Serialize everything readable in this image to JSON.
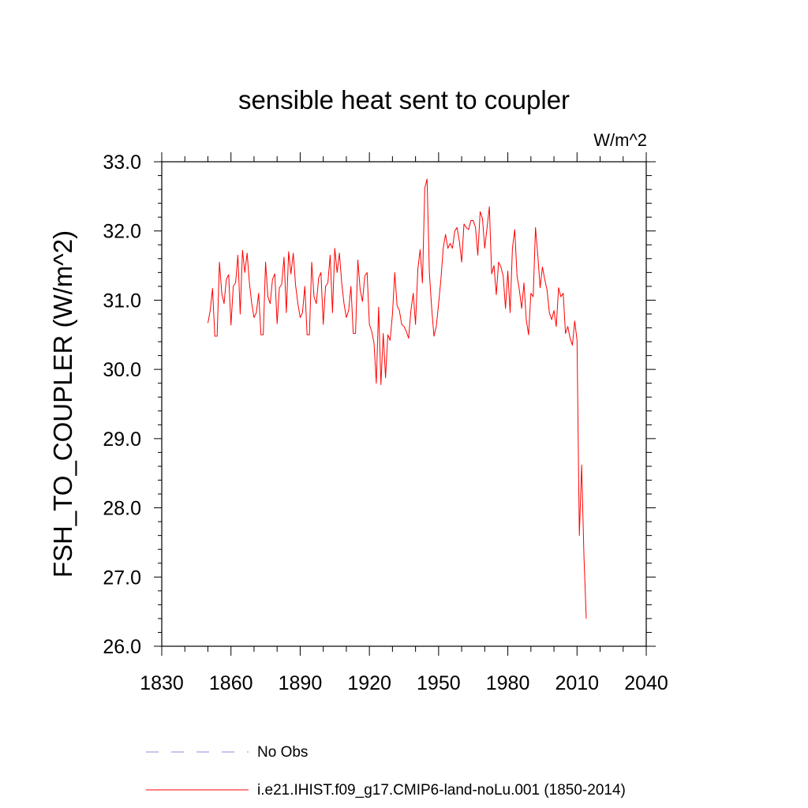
{
  "chart_data": {
    "type": "line",
    "title": "sensible heat sent to coupler",
    "units_label": "W/m^2",
    "ylabel": "FSH_TO_COUPLER  (W/m^2)",
    "xlabel": "",
    "xlim": [
      1830,
      2040
    ],
    "ylim": [
      26.0,
      33.0
    ],
    "x_ticks": [
      1830,
      1860,
      1890,
      1920,
      1950,
      1980,
      2010,
      2040
    ],
    "x_tick_labels": [
      "1830",
      "1860",
      "1890",
      "1920",
      "1950",
      "1980",
      "2010",
      "2040"
    ],
    "y_ticks": [
      26.0,
      27.0,
      28.0,
      29.0,
      30.0,
      31.0,
      32.0,
      33.0
    ],
    "y_tick_labels": [
      "26.0",
      "27.0",
      "28.0",
      "29.0",
      "30.0",
      "31.0",
      "32.0",
      "33.0"
    ],
    "grid": false,
    "legend_position": "bottom",
    "series": [
      {
        "name": "i.e21.IHIST.f09_g17.CMIP6-land-noLu.001 (1850-2014)",
        "color": "#ff0000",
        "style": "solid",
        "x": [
          1850,
          1851,
          1852,
          1853,
          1854,
          1855,
          1856,
          1857,
          1858,
          1859,
          1860,
          1861,
          1862,
          1863,
          1864,
          1865,
          1866,
          1867,
          1868,
          1869,
          1870,
          1871,
          1872,
          1873,
          1874,
          1875,
          1876,
          1877,
          1878,
          1879,
          1880,
          1881,
          1882,
          1883,
          1884,
          1885,
          1886,
          1887,
          1888,
          1889,
          1890,
          1891,
          1892,
          1893,
          1894,
          1895,
          1896,
          1897,
          1898,
          1899,
          1900,
          1901,
          1902,
          1903,
          1904,
          1905,
          1906,
          1907,
          1908,
          1909,
          1910,
          1911,
          1912,
          1913,
          1914,
          1915,
          1916,
          1917,
          1918,
          1919,
          1920,
          1921,
          1922,
          1923,
          1924,
          1925,
          1926,
          1927,
          1928,
          1929,
          1930,
          1931,
          1932,
          1933,
          1934,
          1935,
          1936,
          1937,
          1938,
          1939,
          1940,
          1941,
          1942,
          1943,
          1944,
          1945,
          1946,
          1947,
          1948,
          1949,
          1950,
          1951,
          1952,
          1953,
          1954,
          1955,
          1956,
          1957,
          1958,
          1959,
          1960,
          1961,
          1962,
          1963,
          1964,
          1965,
          1966,
          1967,
          1968,
          1969,
          1970,
          1971,
          1972,
          1973,
          1974,
          1975,
          1976,
          1977,
          1978,
          1979,
          1980,
          1981,
          1982,
          1983,
          1984,
          1985,
          1986,
          1987,
          1988,
          1989,
          1990,
          1991,
          1992,
          1993,
          1994,
          1995,
          1996,
          1997,
          1998,
          1999,
          2000,
          2001,
          2002,
          2003,
          2004,
          2005,
          2006,
          2007,
          2008,
          2009,
          2010,
          2011,
          2012,
          2013,
          2014
        ],
        "values": [
          30.67,
          30.85,
          31.17,
          30.48,
          30.48,
          31.55,
          31.1,
          30.95,
          31.3,
          31.37,
          30.64,
          31.2,
          31.25,
          31.65,
          30.8,
          31.72,
          31.4,
          31.68,
          31.25,
          30.95,
          30.75,
          30.82,
          31.1,
          30.5,
          30.5,
          31.55,
          31.05,
          30.95,
          31.3,
          31.38,
          30.66,
          31.18,
          31.23,
          31.62,
          30.82,
          31.7,
          31.38,
          31.68,
          31.22,
          30.95,
          30.75,
          30.82,
          31.2,
          30.5,
          30.5,
          31.55,
          31.05,
          30.95,
          31.32,
          31.4,
          30.65,
          31.2,
          31.25,
          31.65,
          30.82,
          31.75,
          31.4,
          31.68,
          31.25,
          30.95,
          30.75,
          30.85,
          31.2,
          30.52,
          30.52,
          31.58,
          31.15,
          30.98,
          31.35,
          31.4,
          30.65,
          30.55,
          30.38,
          29.8,
          30.9,
          29.78,
          30.52,
          29.88,
          30.5,
          30.42,
          30.8,
          31.4,
          30.92,
          30.85,
          30.65,
          30.62,
          30.55,
          30.45,
          30.85,
          31.1,
          30.65,
          31.45,
          31.73,
          31.25,
          32.62,
          32.75,
          31.4,
          30.88,
          30.48,
          30.62,
          30.95,
          31.3,
          31.75,
          31.95,
          31.75,
          31.82,
          31.75,
          32.0,
          32.05,
          31.85,
          31.55,
          32.1,
          32.05,
          32.02,
          32.15,
          32.15,
          32.05,
          31.65,
          32.28,
          32.18,
          31.75,
          32.05,
          32.35,
          31.38,
          31.5,
          31.08,
          31.55,
          31.48,
          31.35,
          30.88,
          31.42,
          30.82,
          31.75,
          32.02,
          31.35,
          31.15,
          30.88,
          31.25,
          30.72,
          30.5,
          31.1,
          31.05,
          32.05,
          31.65,
          31.18,
          31.48,
          31.3,
          31.15,
          30.82,
          30.72,
          30.85,
          30.62,
          31.18,
          31.05,
          31.1,
          30.52,
          30.62,
          30.45,
          30.35,
          30.7,
          30.42,
          27.6,
          28.62,
          27.3,
          26.4
        ]
      }
    ],
    "legend": [
      {
        "label": "No Obs",
        "color": "#8c8cd9",
        "style": "dashed"
      },
      {
        "label": "i.e21.IHIST.f09_g17.CMIP6-land-noLu.001 (1850-2014)",
        "color": "#ff0000",
        "style": "solid"
      }
    ]
  }
}
